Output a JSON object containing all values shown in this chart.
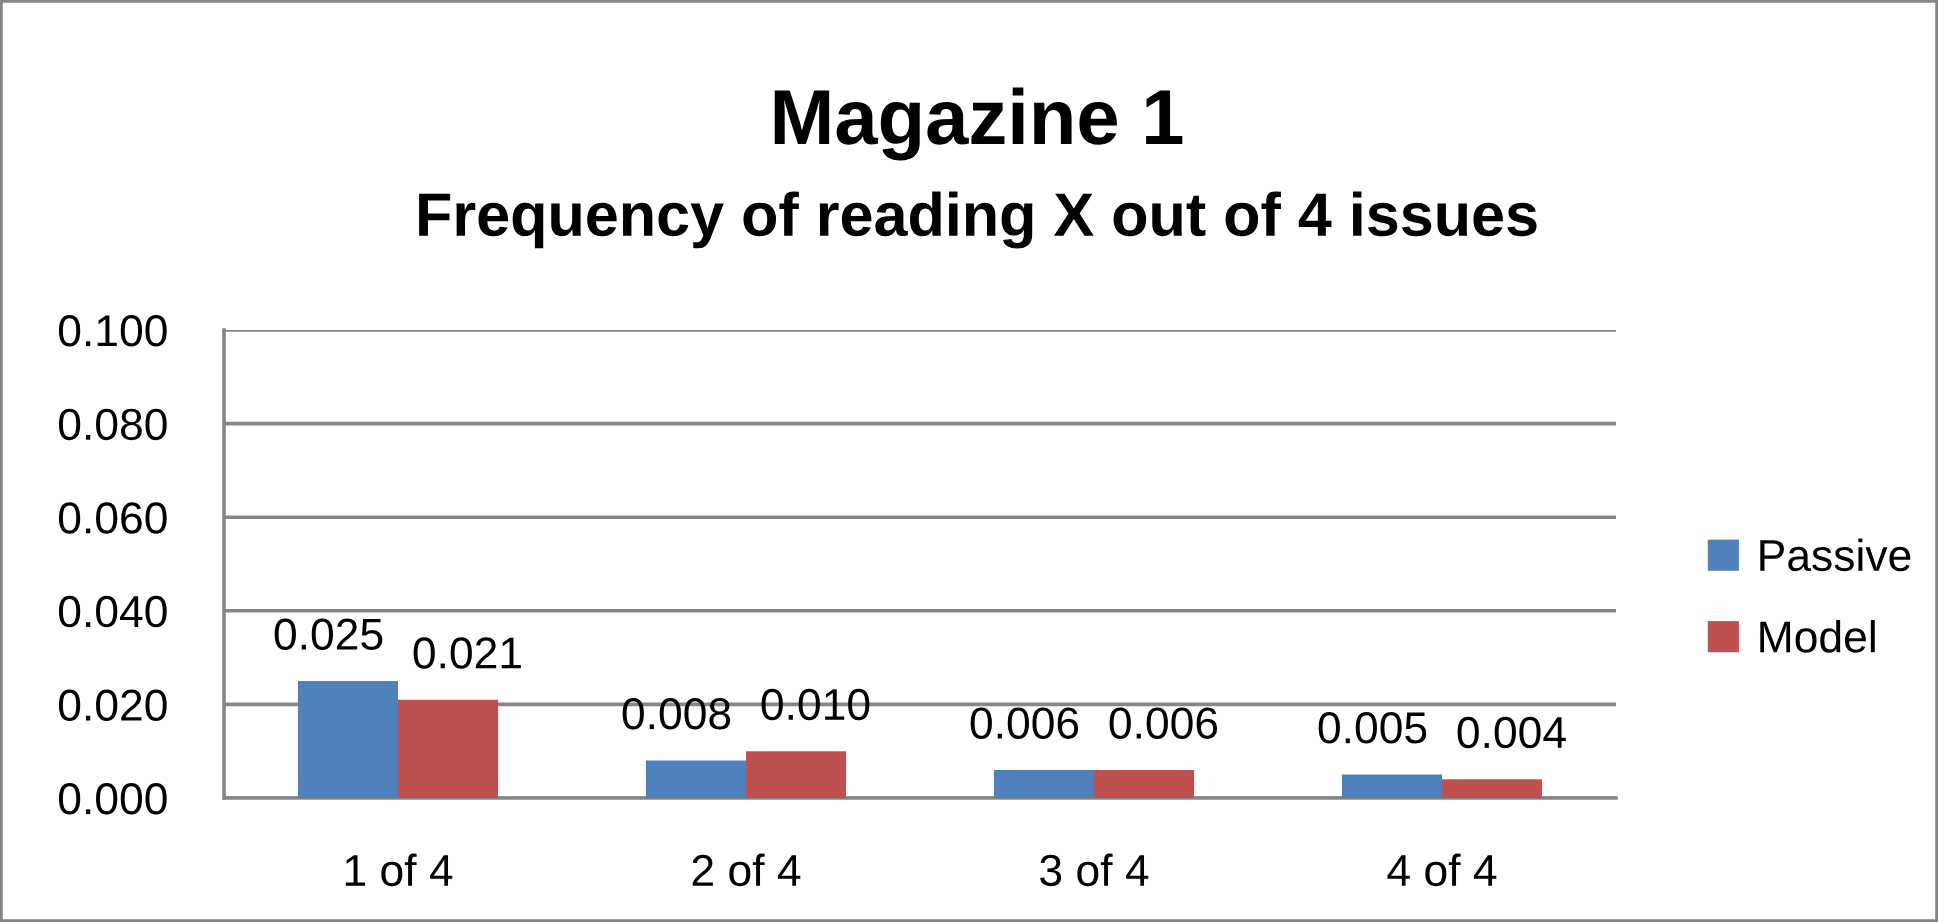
{
  "chart_data": {
    "type": "bar",
    "title": "Magazine 1",
    "subtitle": "Frequency of reading X out of 4 issues",
    "categories": [
      "1 of 4",
      "2 of 4",
      "3 of 4",
      "4 of 4"
    ],
    "series": [
      {
        "name": "Passive",
        "color": "#4f81bd",
        "values": [
          0.025,
          0.008,
          0.006,
          0.005
        ],
        "value_labels": [
          "0.025",
          "0.008",
          "0.006",
          "0.005"
        ]
      },
      {
        "name": "Model",
        "color": "#c0504d",
        "values": [
          0.021,
          0.01,
          0.006,
          0.004
        ],
        "value_labels": [
          "0.021",
          "0.010",
          "0.006",
          "0.004"
        ]
      }
    ],
    "ylim": [
      0,
      0.1
    ],
    "yticks": [
      {
        "value": 0,
        "label": "0.000"
      },
      {
        "value": 0.02,
        "label": "0.020"
      },
      {
        "value": 0.04,
        "label": "0.040"
      },
      {
        "value": 0.06,
        "label": "0.060"
      },
      {
        "value": 0.08,
        "label": "0.080"
      },
      {
        "value": 0.1,
        "label": "0.100"
      }
    ],
    "grid": "y",
    "legend": "right"
  }
}
